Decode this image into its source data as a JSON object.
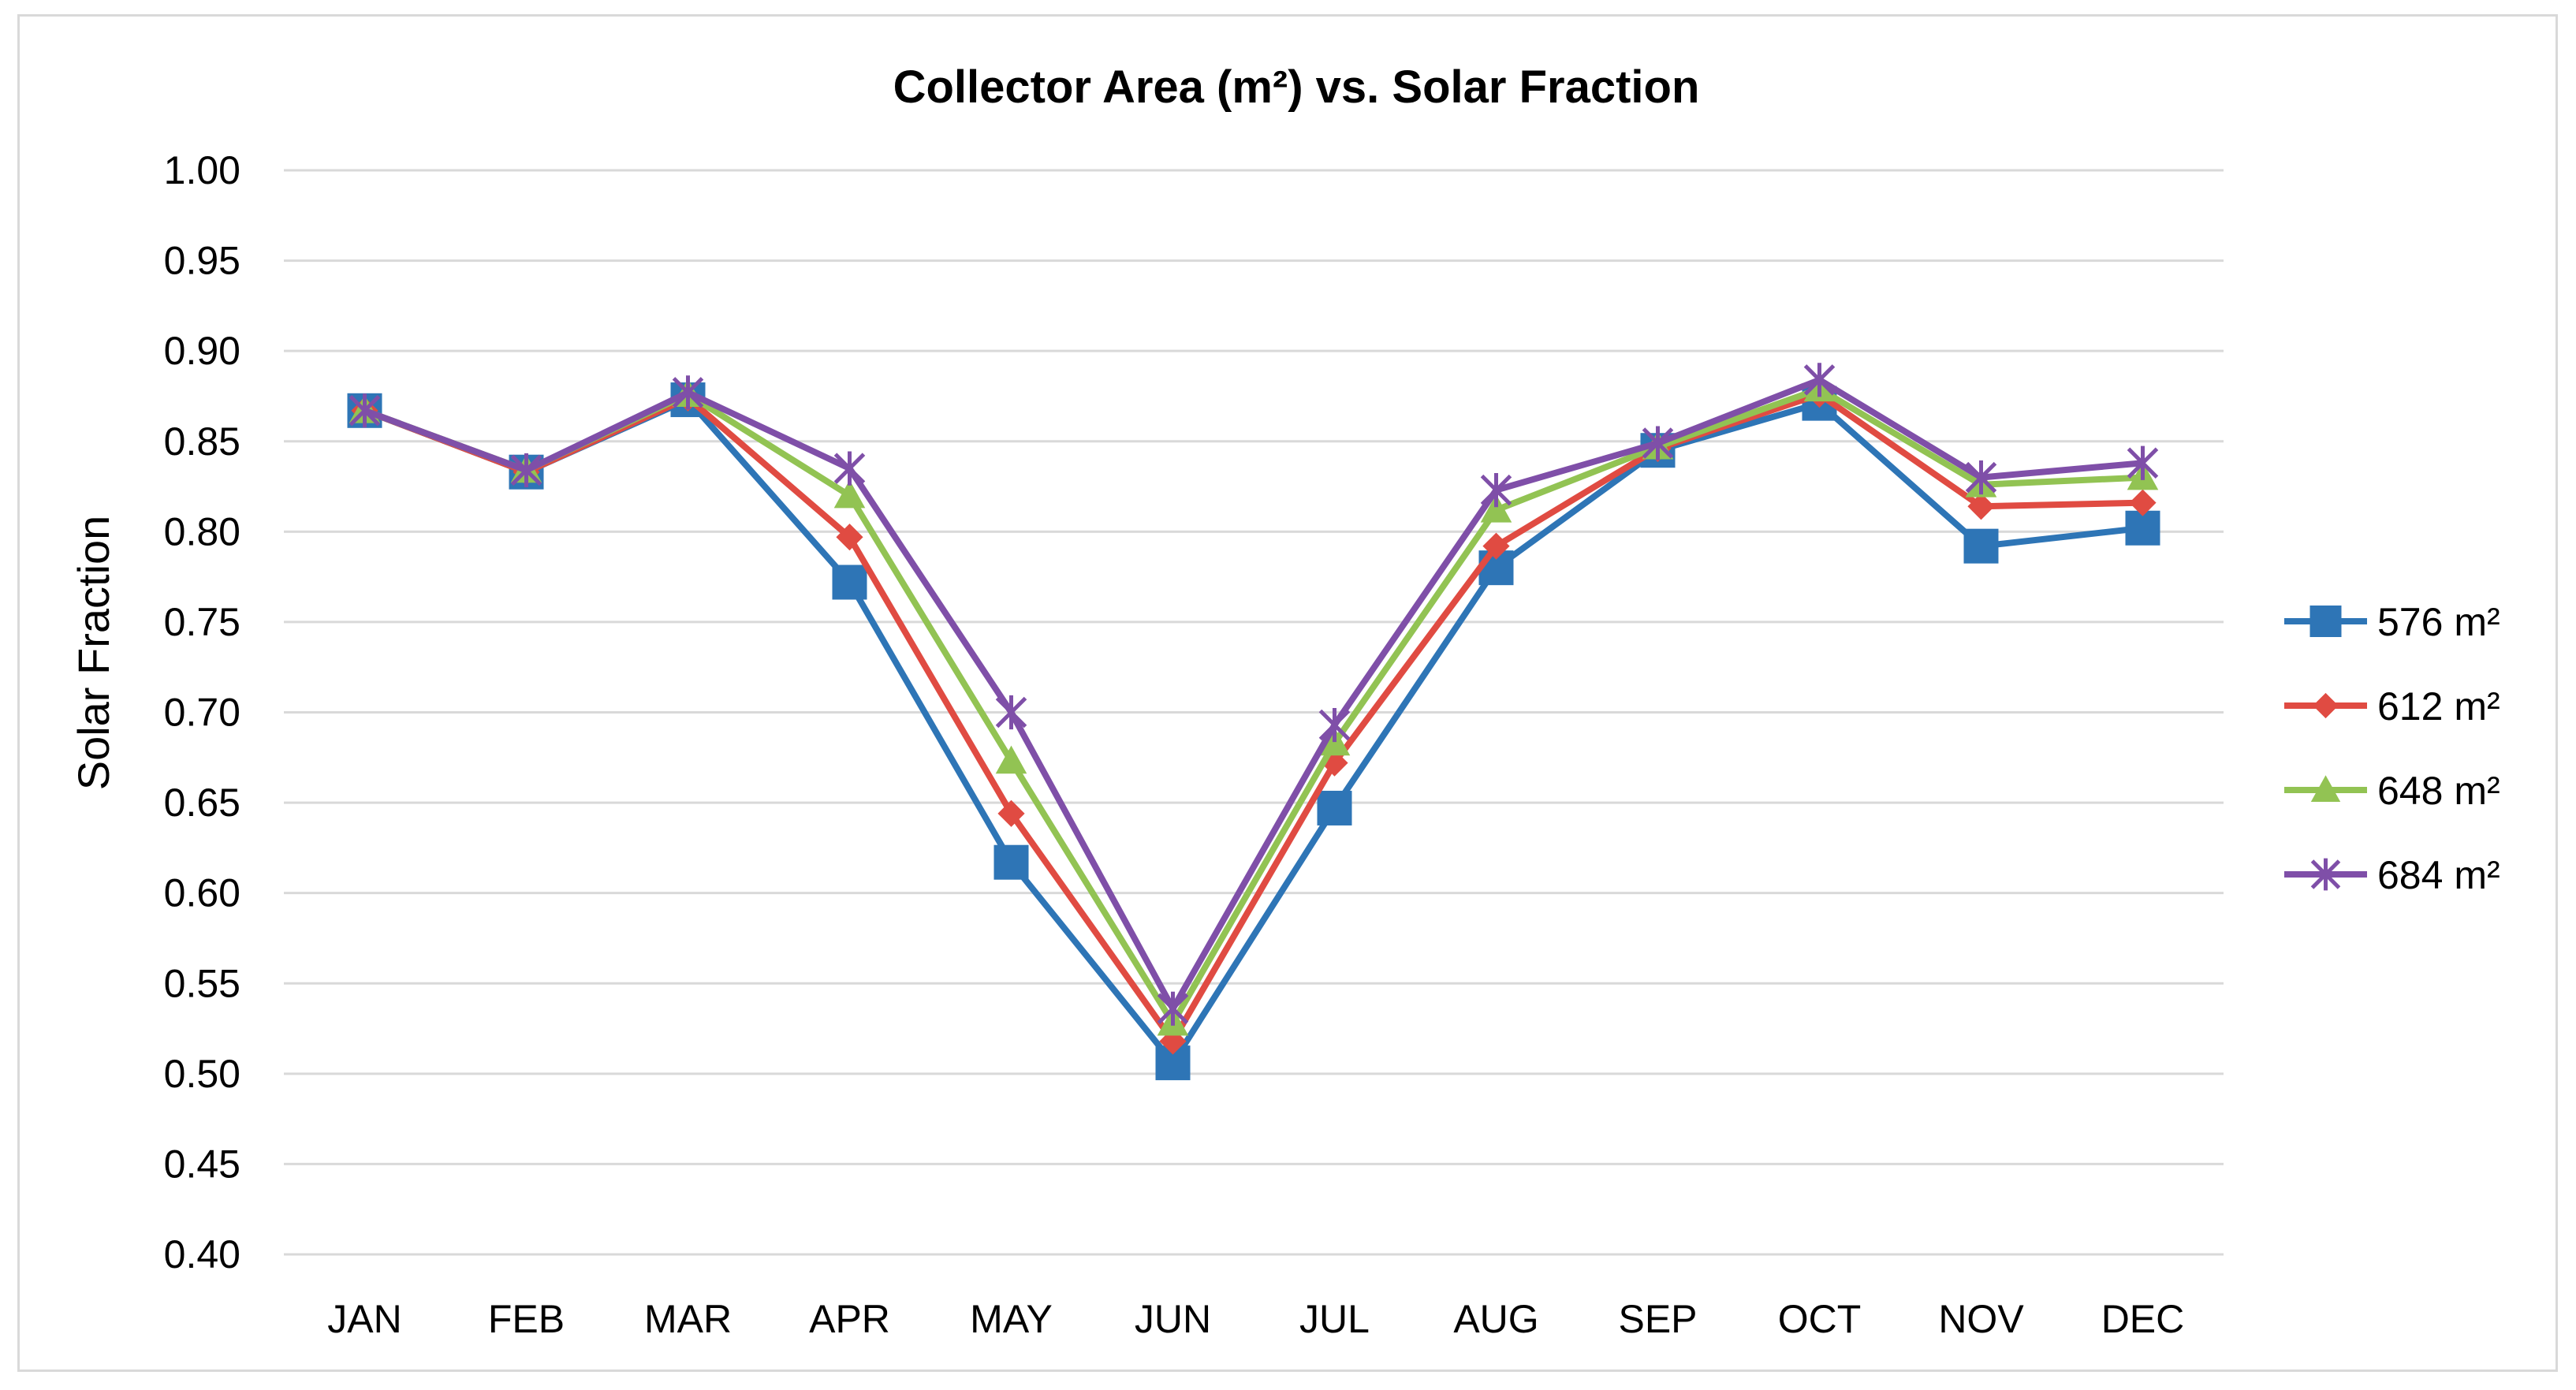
{
  "chart_data": {
    "type": "line",
    "title": "Collector Area (m²) vs. Solar Fraction",
    "xlabel": "",
    "ylabel": "Solar Fraction",
    "ylim": [
      0.4,
      1.0
    ],
    "ytick_step": 0.05,
    "yticks": [
      "0.40",
      "0.45",
      "0.50",
      "0.55",
      "0.60",
      "0.65",
      "0.70",
      "0.75",
      "0.80",
      "0.85",
      "0.90",
      "0.95",
      "1.00"
    ],
    "grid": true,
    "legend_position": "right",
    "categories": [
      "JAN",
      "FEB",
      "MAR",
      "APR",
      "MAY",
      "JUN",
      "JUL",
      "AUG",
      "SEP",
      "OCT",
      "NOV",
      "DEC"
    ],
    "series": [
      {
        "name": "576 m²",
        "color": "#2e75b6",
        "marker": "square",
        "values": [
          0.867,
          0.833,
          0.873,
          0.772,
          0.617,
          0.506,
          0.647,
          0.78,
          0.845,
          0.871,
          0.792,
          0.802
        ]
      },
      {
        "name": "612 m²",
        "color": "#e04b42",
        "marker": "diamond",
        "values": [
          0.867,
          0.833,
          0.874,
          0.797,
          0.644,
          0.518,
          0.672,
          0.792,
          0.846,
          0.876,
          0.814,
          0.816
        ]
      },
      {
        "name": "648 m²",
        "color": "#92c353",
        "marker": "triangle",
        "values": [
          0.867,
          0.834,
          0.876,
          0.82,
          0.673,
          0.528,
          0.683,
          0.812,
          0.847,
          0.879,
          0.826,
          0.83
        ]
      },
      {
        "name": "684 m²",
        "color": "#7f4fa8",
        "marker": "star",
        "values": [
          0.867,
          0.834,
          0.877,
          0.835,
          0.7,
          0.536,
          0.693,
          0.823,
          0.849,
          0.884,
          0.83,
          0.838
        ]
      }
    ]
  }
}
